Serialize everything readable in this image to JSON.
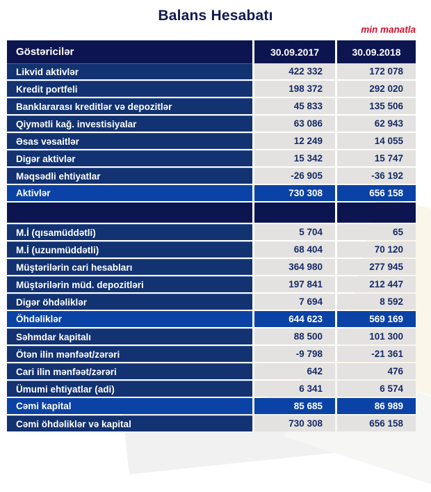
{
  "title": "Balans Hesabatı",
  "unit_note": "min manatla",
  "colors": {
    "header_bg": "#0d1550",
    "row_label_bg": "#123271",
    "total_row_bg": "#0b42a5",
    "value_cell_bg": "#e3e2e0",
    "value_text": "#152a66",
    "title_text": "#101a50",
    "accent_red": "#d8102c"
  },
  "table": {
    "columns": [
      "Göstəricilər",
      "30.09.2017",
      "30.09.2018"
    ],
    "rows": [
      {
        "type": "normal",
        "label": "Likvid aktivlər",
        "v2017": "422 332",
        "v2018": "172 078"
      },
      {
        "type": "normal",
        "label": "Kredit portfeli",
        "v2017": "198 372",
        "v2018": "292 020"
      },
      {
        "type": "normal",
        "label": "Banklararası kreditlər və depozitlər",
        "v2017": "45 833",
        "v2018": "135 506"
      },
      {
        "type": "normal",
        "label": "Qiymətli kağ. investisiyalar",
        "v2017": "63 086",
        "v2018": "62 943"
      },
      {
        "type": "normal",
        "label": "Əsas vəsaitlər",
        "v2017": "12 249",
        "v2018": "14 055"
      },
      {
        "type": "normal",
        "label": "Digər aktivlər",
        "v2017": "15 342",
        "v2018": "15 747"
      },
      {
        "type": "normal",
        "label": "Məqsədli ehtiyatlar",
        "v2017": "-26 905",
        "v2018": "-36 192"
      },
      {
        "type": "total",
        "label": "Aktivlər",
        "v2017": "730 308",
        "v2018": "656 158"
      },
      {
        "type": "spacer",
        "label": "",
        "v2017": "",
        "v2018": ""
      },
      {
        "type": "normal",
        "label": "M.İ (qısamüddətli)",
        "v2017": "5 704",
        "v2018": "65"
      },
      {
        "type": "normal",
        "label": "M.İ (uzunmüddətli)",
        "v2017": "68 404",
        "v2018": "70 120"
      },
      {
        "type": "normal",
        "label": "Müştərilərin cari hesabları",
        "v2017": "364 980",
        "v2018": "277 945"
      },
      {
        "type": "normal",
        "label": "Müştərilərin müd. depozitləri",
        "v2017": "197 841",
        "v2018": "212 447"
      },
      {
        "type": "normal",
        "label": "Digər öhdəliklər",
        "v2017": "7 694",
        "v2018": "8 592"
      },
      {
        "type": "total",
        "label": "Öhdəliklər",
        "v2017": "644 623",
        "v2018": "569 169"
      },
      {
        "type": "normal",
        "label": "Səhmdar kapitalı",
        "v2017": "88 500",
        "v2018": "101 300"
      },
      {
        "type": "normal",
        "label": "Ötən ilin mənfəət/zərəri",
        "v2017": "-9 798",
        "v2018": "-21 361"
      },
      {
        "type": "normal",
        "label": "Cari ilin mənfəət/zərəri",
        "v2017": "642",
        "v2018": "476"
      },
      {
        "type": "normal",
        "label": "Ümumi ehtiyatlar (adi)",
        "v2017": "6 341",
        "v2018": "6 574"
      },
      {
        "type": "total",
        "label": "Cəmi kapital",
        "v2017": "85 685",
        "v2018": "86 989"
      },
      {
        "type": "grand",
        "label": "Cəmi öhdəliklər və kapital",
        "v2017": "730 308",
        "v2018": "656 158"
      }
    ]
  }
}
